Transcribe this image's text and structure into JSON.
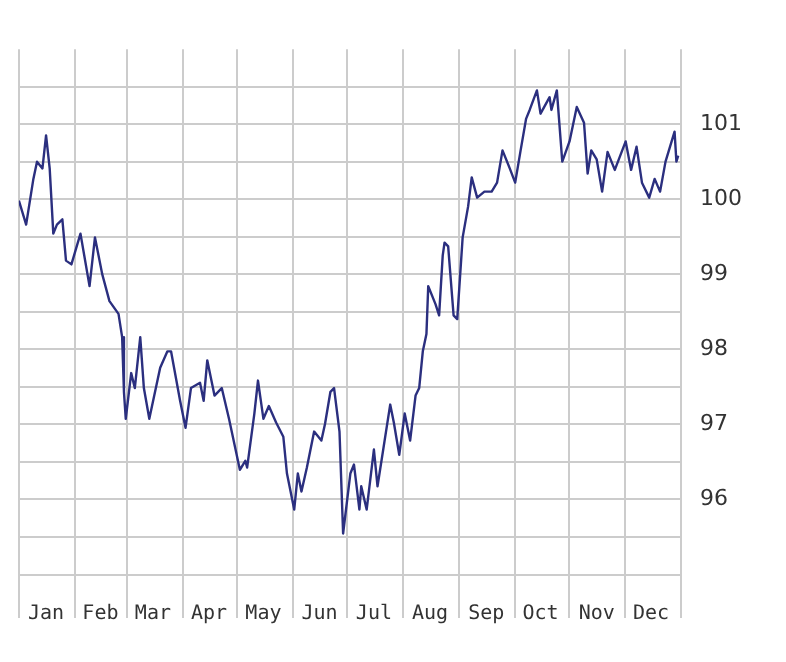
{
  "chart_data": {
    "type": "line",
    "x": [
      "--01-01",
      "--01-05",
      "--01-09",
      "--01-11",
      "--01-14",
      "--01-16",
      "--01-18",
      "--01-20",
      "--01-22",
      "--01-25",
      "--01-27",
      "--01-30",
      "--02-04",
      "--02-09",
      "--02-12",
      "--02-16",
      "--02-20",
      "--02-25",
      "--02-27",
      "--02-28",
      "--03-01",
      "--03-04",
      "--03-06",
      "--03-09",
      "--03-11",
      "--03-14",
      "--03-20",
      "--03-24",
      "--03-26",
      "--03-31",
      "--04-03",
      "--04-06",
      "--04-11",
      "--04-13",
      "--04-15",
      "--04-19",
      "--04-23",
      "--04-27",
      "--05-03",
      "--05-06",
      "--05-07",
      "--05-11",
      "--05-13",
      "--05-16",
      "--05-19",
      "--05-23",
      "--05-27",
      "--05-29",
      "--06-02",
      "--06-04",
      "--06-06",
      "--06-09",
      "--06-13",
      "--06-17",
      "--06-19",
      "--06-22",
      "--06-24",
      "--06-27",
      "--06-29",
      "--07-03",
      "--07-05",
      "--07-08",
      "--07-09",
      "--07-12",
      "--07-16",
      "--07-18",
      "--07-25",
      "--07-27",
      "--07-30",
      "--08-02",
      "--08-05",
      "--08-08",
      "--08-10",
      "--08-12",
      "--08-14",
      "--08-15",
      "--08-19",
      "--08-21",
      "--08-23",
      "--08-24",
      "--08-26",
      "--08-29",
      "--08-31",
      "--09-03",
      "--09-06",
      "--09-08",
      "--09-11",
      "--09-15",
      "--09-19",
      "--09-22",
      "--09-25",
      "--09-29",
      "--10-02",
      "--10-05",
      "--10-08",
      "--10-10",
      "--10-14",
      "--10-16",
      "--10-21",
      "--10-22",
      "--10-25",
      "--10-28",
      "--11-01",
      "--11-05",
      "--11-09",
      "--11-11",
      "--11-13",
      "--11-16",
      "--11-19",
      "--11-22",
      "--11-26",
      "--12-02",
      "--12-05",
      "--12-08",
      "--12-11",
      "--12-15",
      "--12-18",
      "--12-21",
      "--12-24",
      "--12-29",
      "--12-30",
      "--12-31"
    ],
    "series": [
      {
        "color": "#2b2f7f",
        "values": [
          99.98,
          99.66,
          100.27,
          100.5,
          100.41,
          100.85,
          100.41,
          99.54,
          99.66,
          99.73,
          99.18,
          99.13,
          99.54,
          98.84,
          99.49,
          99,
          98.64,
          98.47,
          98.16,
          97.43,
          97.07,
          97.68,
          97.48,
          98.16,
          97.48,
          97.07,
          97.75,
          97.97,
          97.97,
          97.31,
          96.95,
          97.48,
          97.55,
          97.31,
          97.85,
          97.38,
          97.48,
          97.07,
          96.39,
          96.51,
          96.42,
          97.14,
          97.58,
          97.07,
          97.24,
          97.02,
          96.83,
          96.34,
          95.86,
          96.34,
          96.1,
          96.42,
          96.9,
          96.78,
          97,
          97.43,
          97.48,
          96.9,
          95.54,
          96.34,
          96.46,
          95.86,
          96.17,
          95.86,
          96.66,
          96.17,
          97.26,
          97.02,
          96.59,
          97.14,
          96.78,
          97.38,
          97.48,
          97.97,
          98.2,
          98.84,
          98.6,
          98.45,
          99.25,
          99.42,
          99.37,
          98.45,
          98.4,
          99.49,
          99.9,
          100.29,
          100.02,
          100.1,
          100.1,
          100.22,
          100.65,
          100.41,
          100.22,
          100.65,
          101.07,
          101.19,
          101.45,
          101.14,
          101.36,
          101.19,
          101.45,
          100.5,
          100.77,
          101.23,
          101.02,
          100.34,
          100.65,
          100.53,
          100.1,
          100.63,
          100.39,
          100.77,
          100.39,
          100.7,
          100.22,
          100.02,
          100.27,
          100.1,
          100.5,
          100.9,
          100.5,
          100.58
        ]
      }
    ],
    "xlim": [
      "--01-01",
      "--12-31"
    ],
    "xticks": [
      {
        "value": "--01-16",
        "label": "Jan"
      },
      {
        "value": "--02-15",
        "label": "Feb"
      },
      {
        "value": "--03-16",
        "label": "Mar"
      },
      {
        "value": "--04-16",
        "label": "Apr"
      },
      {
        "value": "--05-16",
        "label": "May"
      },
      {
        "value": "--06-16",
        "label": "Jun"
      },
      {
        "value": "--07-16",
        "label": "Jul"
      },
      {
        "value": "--08-16",
        "label": "Aug"
      },
      {
        "value": "--09-16",
        "label": "Sep"
      },
      {
        "value": "--10-16",
        "label": "Oct"
      },
      {
        "value": "--11-16",
        "label": "Nov"
      },
      {
        "value": "--12-16",
        "label": "Dec"
      }
    ],
    "ylim": [
      95,
      102
    ],
    "yticks": [
      {
        "value": 95.5,
        "label": null
      },
      96,
      {
        "value": 96.5,
        "label": null
      },
      97,
      {
        "value": 97.5,
        "label": null
      },
      98,
      {
        "value": 98.5,
        "label": null
      },
      99,
      {
        "value": 99.5,
        "label": null
      },
      100,
      {
        "value": 100.5,
        "label": null
      },
      101,
      {
        "value": 101.5,
        "label": null
      }
    ],
    "grid": true,
    "legend": false,
    "marker": "none",
    "line_style": "solid"
  }
}
